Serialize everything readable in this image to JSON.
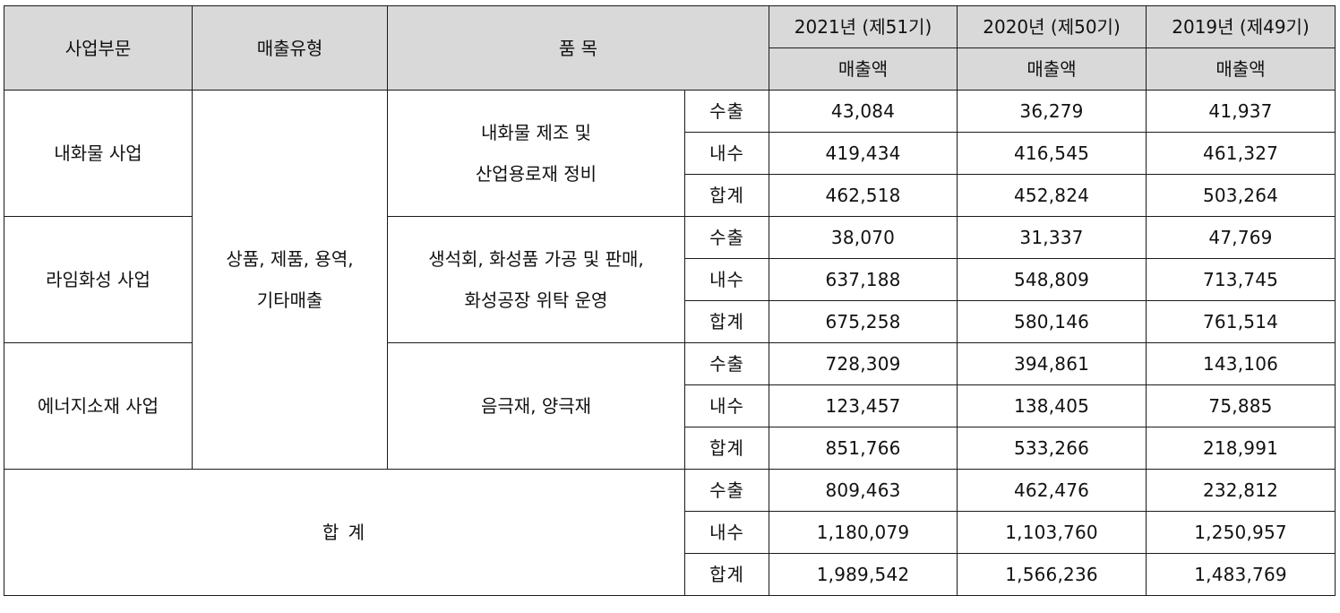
{
  "table": {
    "header": {
      "segment": "사업부문",
      "sales_type": "매출유형",
      "item": "품 목",
      "years": [
        "2021년 (제51기)",
        "2020년 (제50기)",
        "2019년 (제49기)"
      ],
      "amount_label": "매출액"
    },
    "sales_type_value": [
      "상품, 제품, 용역,",
      "기타매출"
    ],
    "sections": [
      {
        "segment": "내화물 사업",
        "item_lines": [
          "내화물 제조 및",
          "산업용로재 정비"
        ],
        "rows": [
          {
            "kind": "수출",
            "values": [
              "43,084",
              "36,279",
              "41,937"
            ]
          },
          {
            "kind": "내수",
            "values": [
              "419,434",
              "416,545",
              "461,327"
            ]
          },
          {
            "kind": "합계",
            "values": [
              "462,518",
              "452,824",
              "503,264"
            ]
          }
        ]
      },
      {
        "segment": "라임화성 사업",
        "item_lines": [
          "생석회, 화성품 가공 및 판매,",
          "화성공장 위탁 운영"
        ],
        "rows": [
          {
            "kind": "수출",
            "values": [
              "38,070",
              "31,337",
              "47,769"
            ]
          },
          {
            "kind": "내수",
            "values": [
              "637,188",
              "548,809",
              "713,745"
            ]
          },
          {
            "kind": "합계",
            "values": [
              "675,258",
              "580,146",
              "761,514"
            ]
          }
        ]
      },
      {
        "segment": "에너지소재 사업",
        "item_lines": [
          "음극재, 양극재"
        ],
        "rows": [
          {
            "kind": "수출",
            "values": [
              "728,309",
              "394,861",
              "143,106"
            ]
          },
          {
            "kind": "내수",
            "values": [
              "123,457",
              "138,405",
              "75,885"
            ]
          },
          {
            "kind": "합계",
            "values": [
              "851,766",
              "533,266",
              "218,991"
            ]
          }
        ]
      }
    ],
    "total": {
      "label": "합 계",
      "rows": [
        {
          "kind": "수출",
          "values": [
            "809,463",
            "462,476",
            "232,812"
          ]
        },
        {
          "kind": "내수",
          "values": [
            "1,180,079",
            "1,103,760",
            "1,250,957"
          ]
        },
        {
          "kind": "합계",
          "values": [
            "1,989,542",
            "1,566,236",
            "1,483,769"
          ]
        }
      ]
    }
  }
}
